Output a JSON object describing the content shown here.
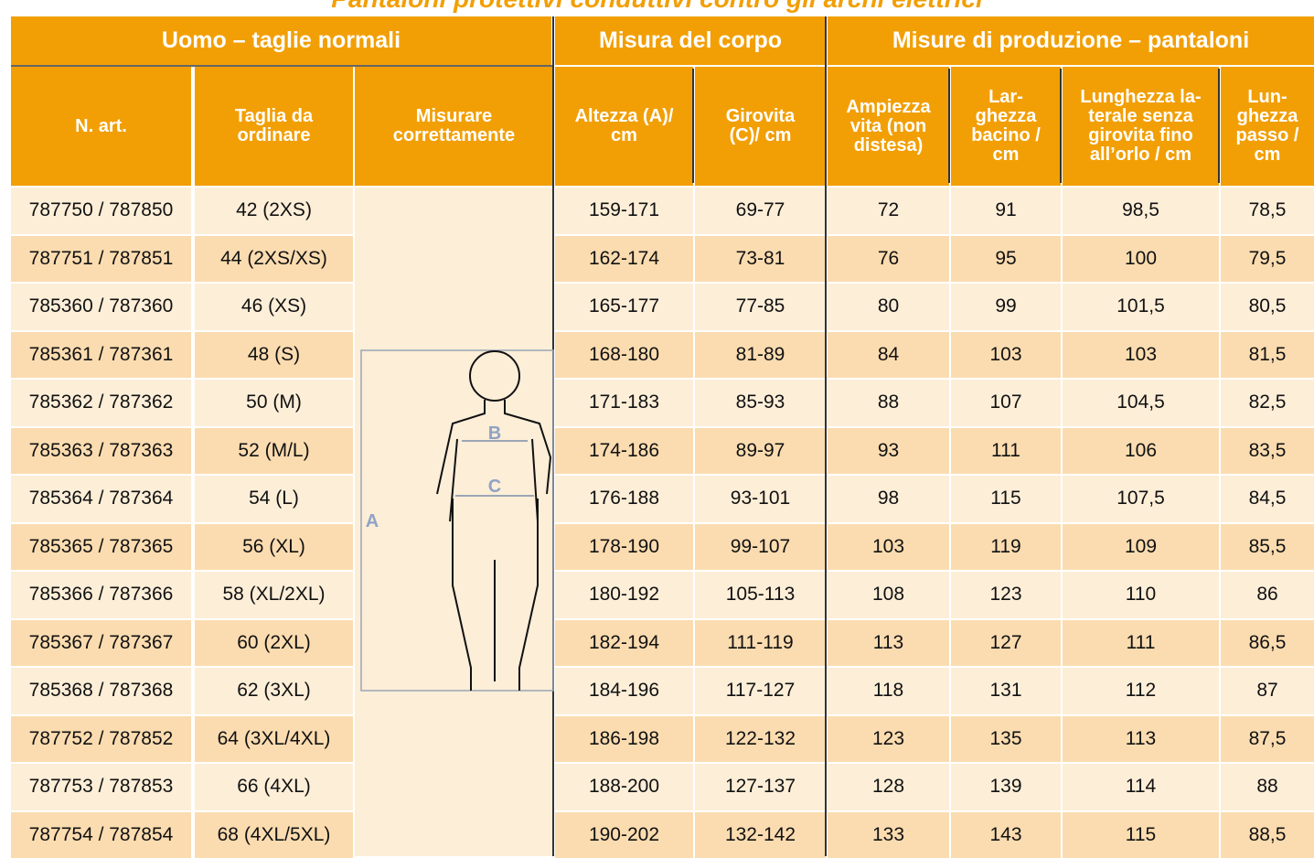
{
  "title": "Pantaloni protettivi conduttivi contro gli archi elettrici",
  "table": {
    "group_headers": [
      "Uomo – taglie normali",
      "Misura del corpo",
      "Misure di produzione – pantaloni"
    ],
    "column_headers": [
      "N. art.",
      "Taglia da\nordinare",
      "Misurare\ncorrettamente",
      "Altezza (A)/\ncm",
      "Girovita\n(C)/ cm",
      "Ampiezza\nvita (non\ndistesa)",
      "Lar-\nghezza\nbacino /\ncm",
      "Lunghezza la-\nterale senza\ngirovita fino\nall’orlo / cm",
      "Lun-\nghezza\npasso /\ncm"
    ],
    "figure_labels": [
      "A",
      "B",
      "C"
    ],
    "rows": [
      [
        "787750 / 787850",
        "42 (2XS)",
        "159-171",
        "69-77",
        "72",
        "91",
        "98,5",
        "78,5"
      ],
      [
        "787751 / 787851",
        "44 (2XS/XS)",
        "162-174",
        "73-81",
        "76",
        "95",
        "100",
        "79,5"
      ],
      [
        "785360 / 787360",
        "46 (XS)",
        "165-177",
        "77-85",
        "80",
        "99",
        "101,5",
        "80,5"
      ],
      [
        "785361 / 787361",
        "48 (S)",
        "168-180",
        "81-89",
        "84",
        "103",
        "103",
        "81,5"
      ],
      [
        "785362 / 787362",
        "50 (M)",
        "171-183",
        "85-93",
        "88",
        "107",
        "104,5",
        "82,5"
      ],
      [
        "785363 / 787363",
        "52 (M/L)",
        "174-186",
        "89-97",
        "93",
        "111",
        "106",
        "83,5"
      ],
      [
        "785364 / 787364",
        "54 (L)",
        "176-188",
        "93-101",
        "98",
        "115",
        "107,5",
        "84,5"
      ],
      [
        "785365 / 787365",
        "56 (XL)",
        "178-190",
        "99-107",
        "103",
        "119",
        "109",
        "85,5"
      ],
      [
        "785366 / 787366",
        "58 (XL/2XL)",
        "180-192",
        "105-113",
        "108",
        "123",
        "110",
        "86"
      ],
      [
        "785367 / 787367",
        "60 (2XL)",
        "182-194",
        "111-119",
        "113",
        "127",
        "111",
        "86,5"
      ],
      [
        "785368 / 787368",
        "62 (3XL)",
        "184-196",
        "117-127",
        "118",
        "131",
        "112",
        "87"
      ],
      [
        "787752 / 787852",
        "64 (3XL/4XL)",
        "186-198",
        "122-132",
        "123",
        "135",
        "113",
        "87,5"
      ],
      [
        "787753 / 787853",
        "66 (4XL)",
        "188-200",
        "127-137",
        "128",
        "139",
        "114",
        "88"
      ],
      [
        "787754 / 787854",
        "68 (4XL/5XL)",
        "190-202",
        "132-142",
        "133",
        "143",
        "115",
        "88,5"
      ]
    ]
  }
}
